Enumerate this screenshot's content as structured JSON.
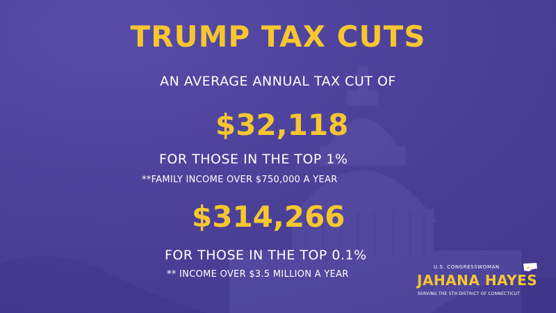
{
  "colors": {
    "background": "#4a3f98",
    "accent_yellow": "#f7c62f",
    "text_white": "#ffffff"
  },
  "headline": "TRUMP TAX CUTS",
  "intro": "AN AVERAGE ANNUAL TAX CUT OF",
  "top1": {
    "amount": "$32,118",
    "label": "FOR THOSE IN THE TOP 1%",
    "note": "**FAMILY INCOME OVER $750,000 A YEAR"
  },
  "top01": {
    "amount": "$314,266",
    "label": "FOR THOSE IN THE TOP 0.1%",
    "note": "** INCOME OVER $3.5 MILLION A YEAR"
  },
  "branding": {
    "line1": "U.S. CONGRESSWOMAN",
    "name": "JAHANA HAYES",
    "line3": "SERVING THE 5TH DISTRICT OF CONNECTICUT",
    "map_icon": "connecticut-map-icon"
  },
  "background_icon": "capitol-dome-icon"
}
